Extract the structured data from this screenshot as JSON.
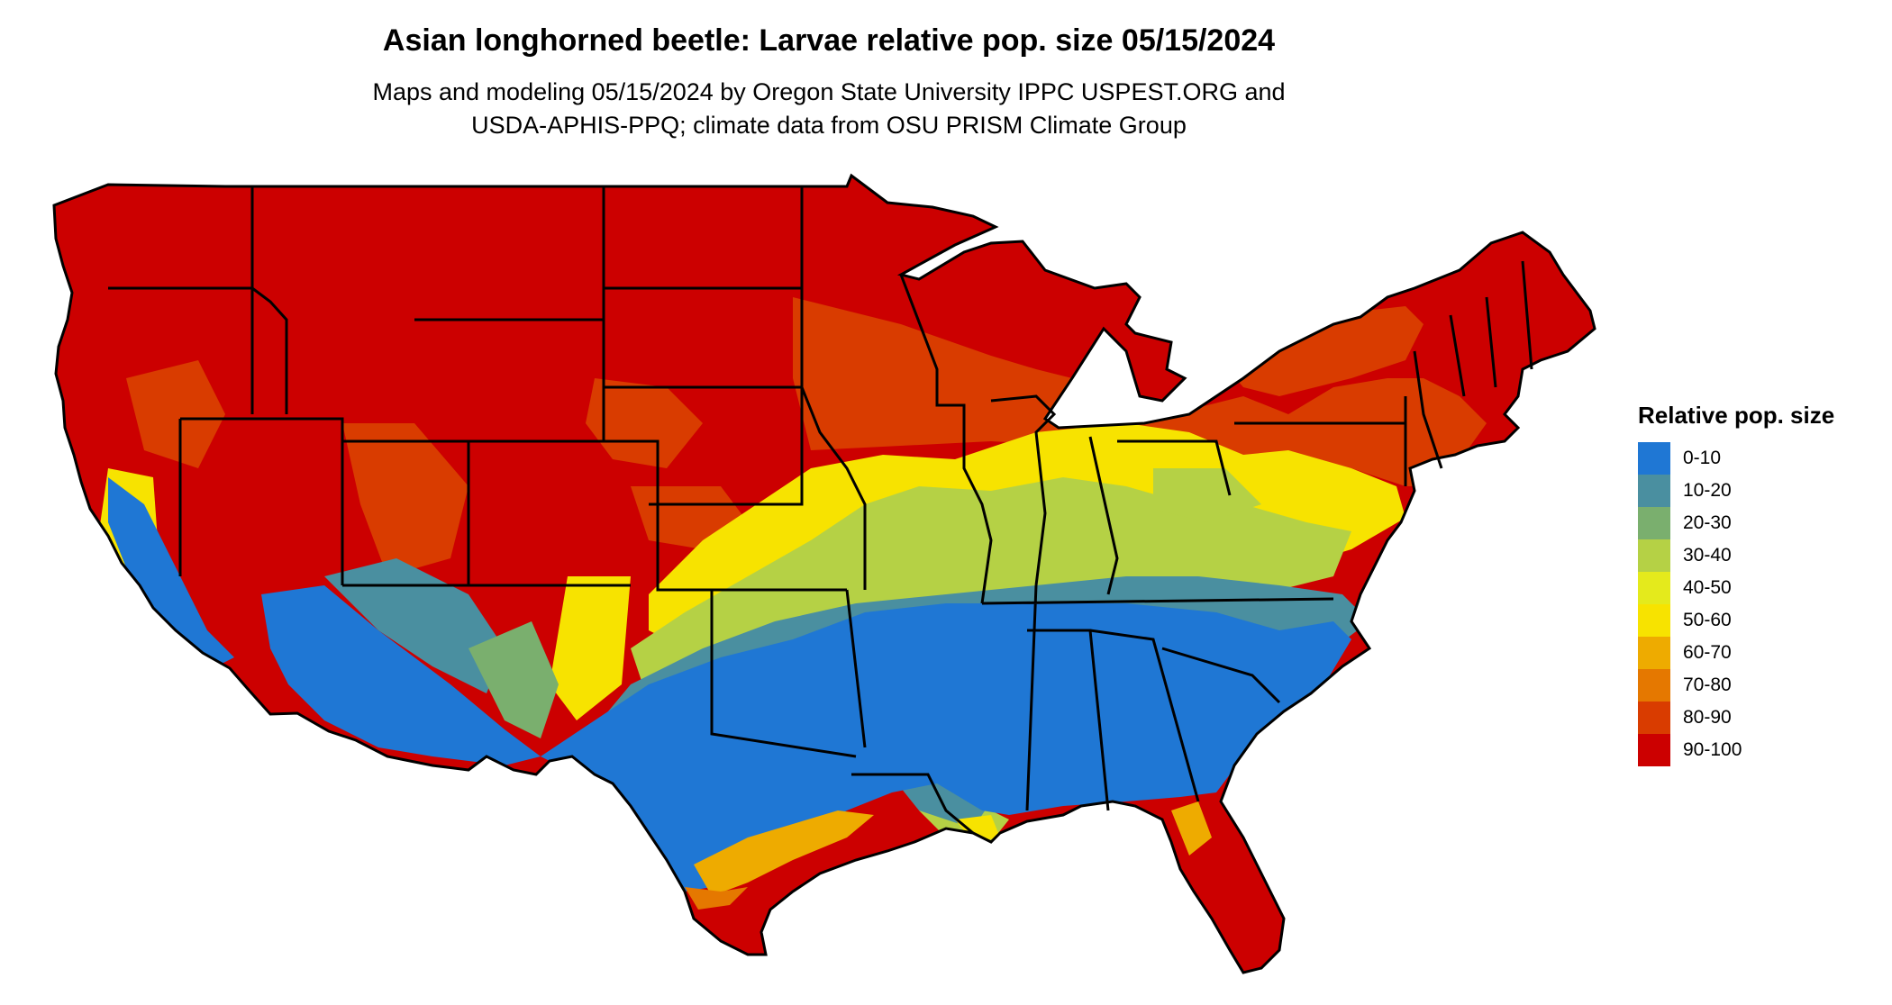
{
  "title": "Asian longhorned beetle: Larvae relative pop. size 05/15/2024",
  "subtitle_line1": "Maps and modeling 05/15/2024 by Oregon State University IPPC USPEST.ORG and",
  "subtitle_line2": "USDA-APHIS-PPQ; climate data from OSU PRISM Climate Group",
  "legend": {
    "title": "Relative pop. size",
    "items": [
      {
        "label": "0-10",
        "color": "#1f77d4"
      },
      {
        "label": "10-20",
        "color": "#4a8fa0"
      },
      {
        "label": "20-30",
        "color": "#7aaf6e"
      },
      {
        "label": "30-40",
        "color": "#b5d145"
      },
      {
        "label": "40-50",
        "color": "#e4ea1c"
      },
      {
        "label": "50-60",
        "color": "#f7e300"
      },
      {
        "label": "60-70",
        "color": "#eeab00"
      },
      {
        "label": "70-80",
        "color": "#e57800"
      },
      {
        "label": "80-90",
        "color": "#d93c00"
      },
      {
        "label": "90-100",
        "color": "#cc0000"
      }
    ]
  }
}
